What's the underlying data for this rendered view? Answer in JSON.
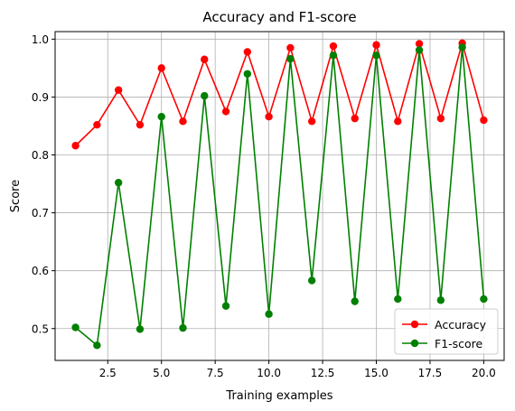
{
  "chart_data": {
    "type": "line",
    "title": "Accuracy and F1-score",
    "xlabel": "Training examples",
    "ylabel": "Score",
    "xlim": [
      0.05,
      20.95
    ],
    "ylim": [
      0.445,
      1.013
    ],
    "xticks": [
      2.5,
      5.0,
      7.5,
      10.0,
      12.5,
      15.0,
      17.5,
      20.0
    ],
    "xtick_labels": [
      "2.5",
      "5.0",
      "7.5",
      "10.0",
      "12.5",
      "15.0",
      "17.5",
      "20.0"
    ],
    "yticks": [
      0.5,
      0.6,
      0.7,
      0.8,
      0.9,
      1.0
    ],
    "ytick_labels": [
      "0.5",
      "0.6",
      "0.7",
      "0.8",
      "0.9",
      "1.0"
    ],
    "grid": true,
    "legend_position": "lower-right",
    "x": [
      1,
      2,
      3,
      4,
      5,
      6,
      7,
      8,
      9,
      10,
      11,
      12,
      13,
      14,
      15,
      16,
      17,
      18,
      19,
      20
    ],
    "series": [
      {
        "name": "Accuracy",
        "color": "#ff0000",
        "values": [
          0.816,
          0.852,
          0.912,
          0.852,
          0.95,
          0.858,
          0.965,
          0.875,
          0.978,
          0.866,
          0.985,
          0.858,
          0.988,
          0.863,
          0.99,
          0.858,
          0.992,
          0.863,
          0.993,
          0.86
        ]
      },
      {
        "name": "F1-score",
        "color": "#008000",
        "values": [
          0.502,
          0.471,
          0.752,
          0.499,
          0.866,
          0.501,
          0.902,
          0.539,
          0.94,
          0.525,
          0.966,
          0.583,
          0.972,
          0.547,
          0.972,
          0.551,
          0.981,
          0.549,
          0.986,
          0.551
        ]
      }
    ]
  }
}
